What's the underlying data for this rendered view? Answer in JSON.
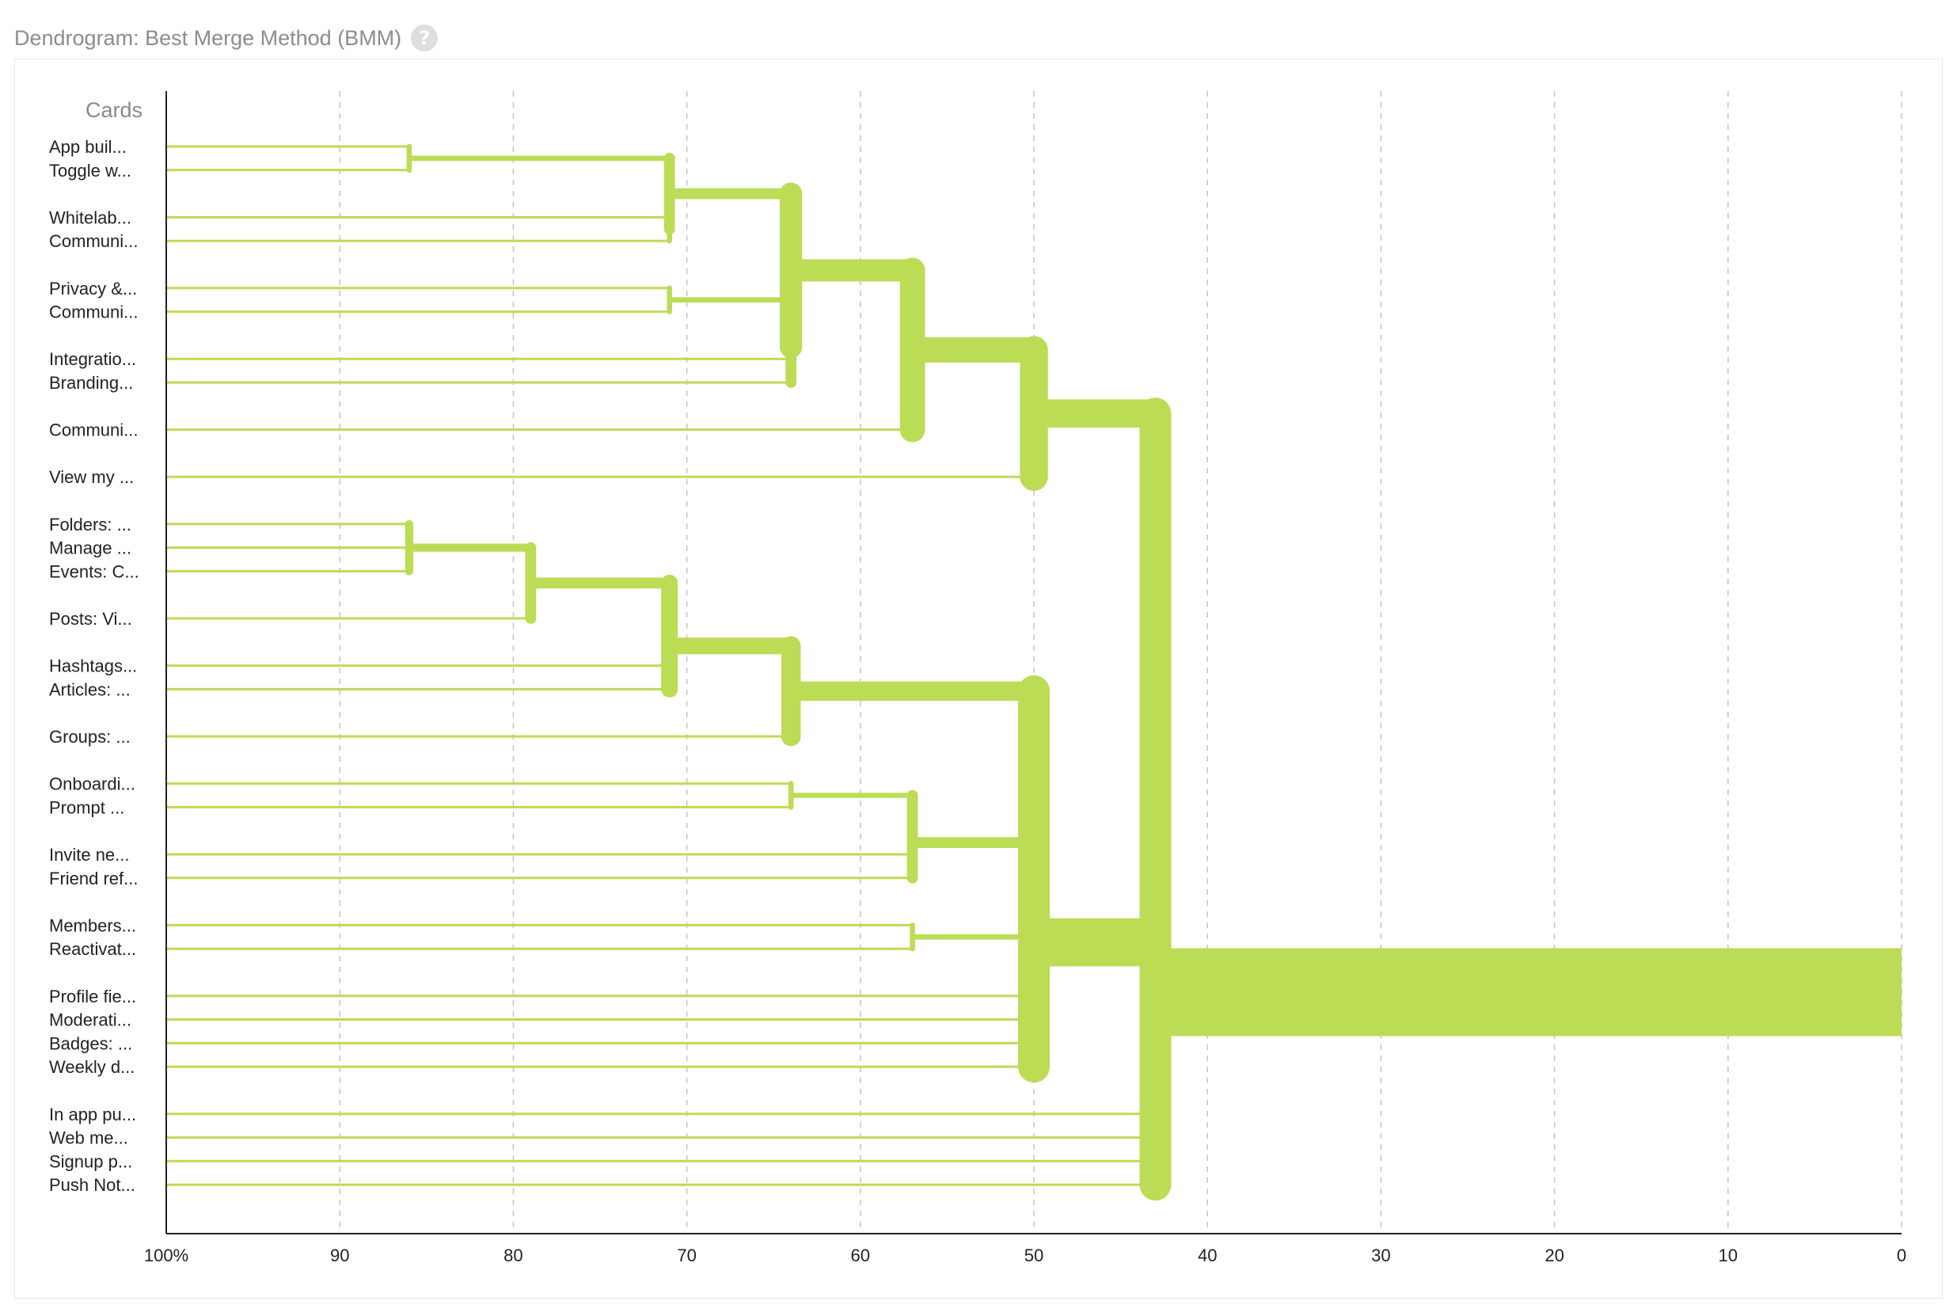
{
  "header": {
    "title": "Dendrogram: Best Merge Method (BMM)",
    "help_icon": "?"
  },
  "chart_data": {
    "type": "dendrogram",
    "title": "Dendrogram: Best Merge Method (BMM)",
    "ylabel": "Cards",
    "xlabel": "",
    "xlim": [
      100,
      0
    ],
    "grid": true,
    "color": "#bcdc55",
    "x_ticks": [
      "100%",
      "90",
      "80",
      "70",
      "60",
      "50",
      "40",
      "30",
      "20",
      "10",
      "0"
    ],
    "leaves": [
      {
        "id": 0,
        "label": "App buil..."
      },
      {
        "id": 1,
        "label": "Toggle w..."
      },
      {
        "id": 2,
        "label": "Whitelab..."
      },
      {
        "id": 3,
        "label": "Communi..."
      },
      {
        "id": 4,
        "label": "Privacy &..."
      },
      {
        "id": 5,
        "label": "Communi..."
      },
      {
        "id": 6,
        "label": "Integratio..."
      },
      {
        "id": 7,
        "label": "Branding..."
      },
      {
        "id": 8,
        "label": "Communi..."
      },
      {
        "id": 9,
        "label": "View my ..."
      },
      {
        "id": 10,
        "label": "Folders: ..."
      },
      {
        "id": 11,
        "label": "Manage ..."
      },
      {
        "id": 12,
        "label": "Events: C..."
      },
      {
        "id": 13,
        "label": "Posts:  Vi..."
      },
      {
        "id": 14,
        "label": "Hashtags..."
      },
      {
        "id": 15,
        "label": "Articles: ..."
      },
      {
        "id": 16,
        "label": "Groups: ..."
      },
      {
        "id": 17,
        "label": "Onboardi..."
      },
      {
        "id": 18,
        "label": "Prompt ..."
      },
      {
        "id": 19,
        "label": "Invite ne..."
      },
      {
        "id": 20,
        "label": "Friend ref..."
      },
      {
        "id": 21,
        "label": "Members..."
      },
      {
        "id": 22,
        "label": "Reactivat..."
      },
      {
        "id": 23,
        "label": "Profile fie..."
      },
      {
        "id": 24,
        "label": "Moderati..."
      },
      {
        "id": 25,
        "label": "Badges: ..."
      },
      {
        "id": 26,
        "label": "Weekly d..."
      },
      {
        "id": 27,
        "label": "In app pu..."
      },
      {
        "id": 28,
        "label": "Web me..."
      },
      {
        "id": 29,
        "label": "Signup p..."
      },
      {
        "id": 30,
        "label": "Push Not..."
      }
    ],
    "merges": [
      {
        "id": "A",
        "children": [
          "L0",
          "L1"
        ],
        "at": 86
      },
      {
        "id": "B",
        "children": [
          "L2",
          "L3"
        ],
        "at": 71
      },
      {
        "id": "C",
        "children": [
          "A",
          "B"
        ],
        "at": 71
      },
      {
        "id": "D",
        "children": [
          "L4",
          "L5"
        ],
        "at": 71
      },
      {
        "id": "E",
        "children": [
          "D",
          "L6",
          "L7"
        ],
        "at": 64
      },
      {
        "id": "F",
        "children": [
          "C",
          "E"
        ],
        "at": 64
      },
      {
        "id": "G",
        "children": [
          "F",
          "L8"
        ],
        "at": 57
      },
      {
        "id": "H",
        "children": [
          "G",
          "L9"
        ],
        "at": 50
      },
      {
        "id": "I",
        "children": [
          "L10",
          "L11",
          "L12"
        ],
        "at": 86
      },
      {
        "id": "J",
        "children": [
          "I",
          "L13"
        ],
        "at": 79
      },
      {
        "id": "K",
        "children": [
          "J",
          "L14",
          "L15"
        ],
        "at": 71
      },
      {
        "id": "M",
        "children": [
          "K",
          "L16"
        ],
        "at": 64
      },
      {
        "id": "N",
        "children": [
          "L17",
          "L18"
        ],
        "at": 64
      },
      {
        "id": "O",
        "children": [
          "N",
          "L19",
          "L20"
        ],
        "at": 57
      },
      {
        "id": "P",
        "children": [
          "L21",
          "L22"
        ],
        "at": 57
      },
      {
        "id": "Q",
        "children": [
          "M",
          "O",
          "P",
          "L23",
          "L24",
          "L25",
          "L26"
        ],
        "at": 50
      },
      {
        "id": "R",
        "children": [
          "H",
          "Q",
          "L27",
          "L28",
          "L29",
          "L30"
        ],
        "at": 43
      }
    ]
  }
}
